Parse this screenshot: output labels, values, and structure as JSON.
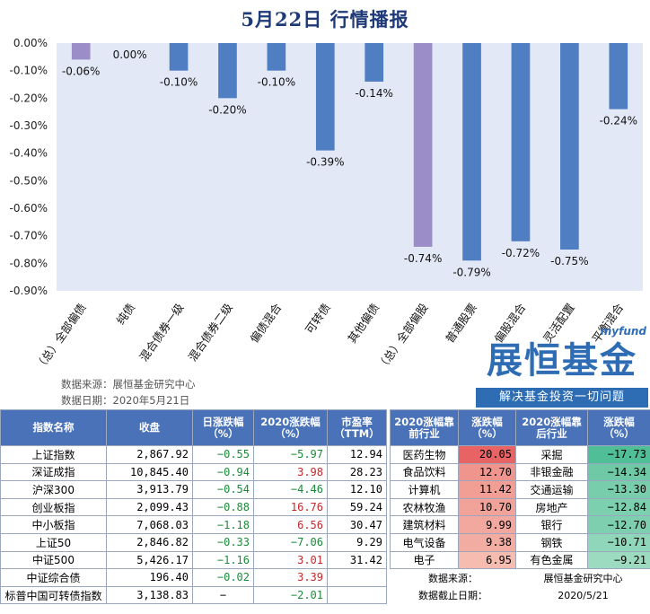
{
  "header": {
    "title": "5月22日  行情播报"
  },
  "chart_data": {
    "type": "bar",
    "categories": [
      "（总）全部偏债",
      "纯债",
      "混合债券一级",
      "混合债券二级",
      "偏债混合",
      "可转债",
      "其他偏债",
      "（总）全部偏股",
      "普通股票",
      "偏股混合",
      "灵活配置",
      "平衡混合"
    ],
    "values": [
      -0.06,
      0.0,
      -0.1,
      -0.2,
      -0.1,
      -0.39,
      -0.14,
      -0.74,
      -0.79,
      -0.72,
      -0.75,
      -0.24
    ],
    "data_labels": [
      "-0.06%",
      "0.00%",
      "-0.10%",
      "-0.20%",
      "-0.10%",
      "-0.39%",
      "-0.14%",
      "-0.74%",
      "-0.79%",
      "-0.72%",
      "-0.75%",
      "-0.24%"
    ],
    "yticks": [
      0.0,
      -0.1,
      -0.2,
      -0.3,
      -0.4,
      -0.5,
      -0.6,
      -0.7,
      -0.8,
      -0.9
    ],
    "ytick_labels": [
      "0.00%",
      "-0.10%",
      "-0.20%",
      "-0.30%",
      "-0.40%",
      "-0.50%",
      "-0.60%",
      "-0.70%",
      "-0.80%",
      "-0.90%"
    ],
    "ylim": [
      -0.9,
      0
    ],
    "highlight_indices": [
      0,
      7
    ],
    "colors": {
      "bar": "#4f7ec2",
      "highlight": "#9b8ec8",
      "plot_bg": "#e3e8f6"
    }
  },
  "source": {
    "line1": "数据来源：展恒基金研究中心",
    "line2": "数据日期：2020年5月21日"
  },
  "logo": {
    "small": "myfund",
    "main": "展恒基金",
    "slogan": "解决基金投资一切问题"
  },
  "index_table": {
    "headers": [
      "指数名称",
      "收盘",
      "日涨跌幅（%）",
      "2020涨跌幅（%）",
      "市盈率（TTM）"
    ],
    "rows": [
      {
        "name": "上证指数",
        "close": "2,867.92",
        "day": "−0.55",
        "ytd": "−5.97",
        "pe": "12.94"
      },
      {
        "name": "深证成指",
        "close": "10,845.40",
        "day": "−0.94",
        "ytd": "3.98",
        "pe": "28.23"
      },
      {
        "name": "沪深300",
        "close": "3,913.79",
        "day": "−0.54",
        "ytd": "−4.46",
        "pe": "12.10"
      },
      {
        "name": "创业板指",
        "close": "2,099.43",
        "day": "−0.88",
        "ytd": "16.76",
        "pe": "59.24"
      },
      {
        "name": "中小板指",
        "close": "7,068.03",
        "day": "−1.18",
        "ytd": "6.56",
        "pe": "30.47"
      },
      {
        "name": "上证50",
        "close": "2,846.82",
        "day": "−0.33",
        "ytd": "−7.06",
        "pe": "9.29"
      },
      {
        "name": "中证500",
        "close": "5,426.17",
        "day": "−1.16",
        "ytd": "3.01",
        "pe": "31.42"
      },
      {
        "name": "中证综合债",
        "close": "196.40",
        "day": "−0.02",
        "ytd": "3.39",
        "pe": ""
      },
      {
        "name": "标普中国可转债指数",
        "close": "3,138.83",
        "day": "−",
        "ytd": "−2.01",
        "pe": ""
      }
    ]
  },
  "sector_table": {
    "headers": [
      "2020涨幅靠前行业",
      "涨跌幅（%）",
      "2020涨幅靠后行业",
      "涨跌幅（%）"
    ],
    "rows": [
      {
        "top": "医药生物",
        "top_chg": "20.05",
        "bottom": "采掘",
        "bottom_chg": "−17.73"
      },
      {
        "top": "食品饮料",
        "top_chg": "12.70",
        "bottom": "非银金融",
        "bottom_chg": "−14.34"
      },
      {
        "top": "计算机",
        "top_chg": "11.42",
        "bottom": "交通运输",
        "bottom_chg": "−13.30"
      },
      {
        "top": "农林牧渔",
        "top_chg": "10.70",
        "bottom": "房地产",
        "bottom_chg": "−12.84"
      },
      {
        "top": "建筑材料",
        "top_chg": "9.99",
        "bottom": "银行",
        "bottom_chg": "−12.70"
      },
      {
        "top": "电气设备",
        "top_chg": "9.38",
        "bottom": "钢铁",
        "bottom_chg": "−10.71"
      },
      {
        "top": "电子",
        "top_chg": "6.95",
        "bottom": "有色金属",
        "bottom_chg": "−9.21"
      }
    ],
    "footer": {
      "source_label": "数据来源：",
      "source_value": "展恒基金研究中心",
      "date_label": "数据截止日期：",
      "date_value": "2020/5/21"
    }
  }
}
